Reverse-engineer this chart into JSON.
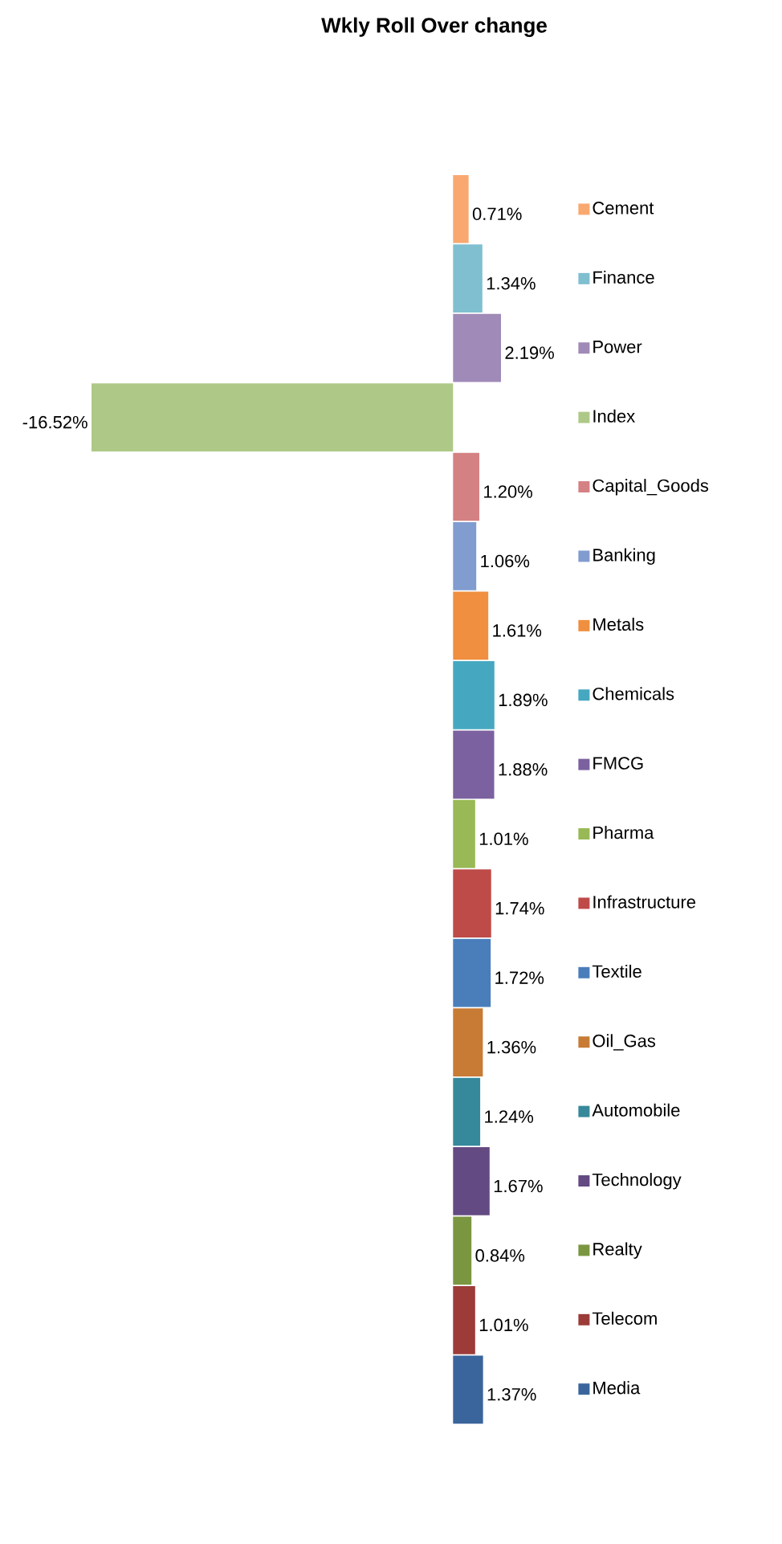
{
  "chart_data": {
    "type": "bar",
    "orientation": "horizontal",
    "title": "Wkly Roll Over change",
    "categories": [
      null
    ],
    "series": [
      {
        "name": "Cement",
        "color": "#f9a870",
        "values": [
          0.71
        ],
        "value_labels": [
          "0.71%"
        ]
      },
      {
        "name": "Finance",
        "color": "#7fbfd0",
        "values": [
          1.34
        ],
        "value_labels": [
          "1.34%"
        ]
      },
      {
        "name": "Power",
        "color": "#9f8ab8",
        "values": [
          2.19
        ],
        "value_labels": [
          "2.19%"
        ]
      },
      {
        "name": "Index",
        "color": "#aec987",
        "values": [
          -16.52
        ],
        "value_labels": [
          "-16.52%"
        ]
      },
      {
        "name": "Capital_Goods",
        "color": "#d48184",
        "values": [
          1.2
        ],
        "value_labels": [
          "1.20%"
        ]
      },
      {
        "name": "Banking",
        "color": "#819ccf",
        "values": [
          1.06
        ],
        "value_labels": [
          "1.06%"
        ]
      },
      {
        "name": "Metals",
        "color": "#ef8f3f",
        "values": [
          1.61
        ],
        "value_labels": [
          "1.61%"
        ]
      },
      {
        "name": "Chemicals",
        "color": "#46a8c0",
        "values": [
          1.89
        ],
        "value_labels": [
          "1.89%"
        ]
      },
      {
        "name": "FMCG",
        "color": "#7b61a0",
        "values": [
          1.88
        ],
        "value_labels": [
          "1.88%"
        ]
      },
      {
        "name": "Pharma",
        "color": "#98b955",
        "values": [
          1.01
        ],
        "value_labels": [
          "1.01%"
        ]
      },
      {
        "name": "Infrastructure",
        "color": "#be4b48",
        "values": [
          1.74
        ],
        "value_labels": [
          "1.74%"
        ]
      },
      {
        "name": "Textile",
        "color": "#4a7ebb",
        "values": [
          1.72
        ],
        "value_labels": [
          "1.72%"
        ]
      },
      {
        "name": "Oil_Gas",
        "color": "#c77b35",
        "values": [
          1.36
        ],
        "value_labels": [
          "1.36%"
        ]
      },
      {
        "name": "Automobile",
        "color": "#36899b",
        "values": [
          1.24
        ],
        "value_labels": [
          "1.24%"
        ]
      },
      {
        "name": "Technology",
        "color": "#644a82",
        "values": [
          1.67
        ],
        "value_labels": [
          "1.67%"
        ]
      },
      {
        "name": "Realty",
        "color": "#7a9641",
        "values": [
          0.84
        ],
        "value_labels": [
          "0.84%"
        ]
      },
      {
        "name": "Telecom",
        "color": "#9c3b38",
        "values": [
          1.01
        ],
        "value_labels": [
          "1.01%"
        ]
      },
      {
        "name": "Media",
        "color": "#3a659c",
        "values": [
          1.37
        ],
        "value_labels": [
          "1.37%"
        ]
      }
    ],
    "legend": "right"
  }
}
